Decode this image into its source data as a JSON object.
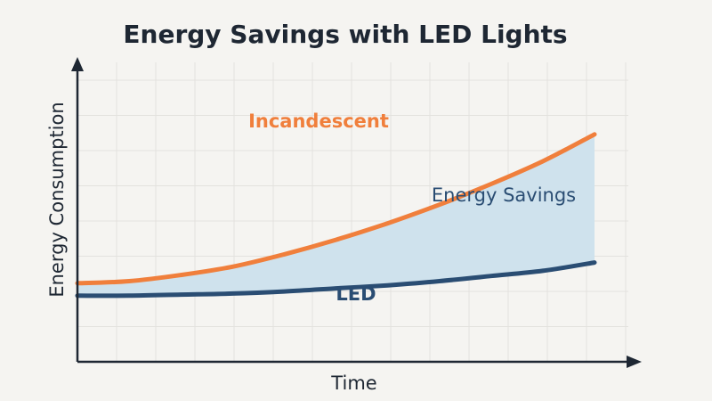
{
  "chart_data": {
    "type": "line",
    "title": "Energy Savings with LED Lights",
    "xlabel": "Time",
    "ylabel": "Energy Consumption",
    "xlim": [
      0,
      10
    ],
    "ylim": [
      0,
      10
    ],
    "grid": true,
    "x": [
      0,
      1,
      2,
      3,
      4,
      5,
      6,
      7,
      8,
      9,
      10
    ],
    "series": [
      {
        "name": "Incandescent",
        "color": "#f07f3c",
        "values": [
          3.8,
          3.9,
          4.2,
          4.6,
          5.2,
          5.9,
          6.7,
          7.6,
          8.6,
          9.7,
          11.0
        ]
      },
      {
        "name": "LED",
        "color": "#2a4d73",
        "values": [
          3.2,
          3.2,
          3.25,
          3.3,
          3.4,
          3.55,
          3.7,
          3.9,
          4.15,
          4.4,
          4.8
        ]
      }
    ],
    "fill_between": {
      "label": "Energy Savings",
      "color": "#cfe2ed",
      "label_color": "#2a4d73"
    },
    "annotations": [
      "Incandescent",
      "Energy Savings",
      "LED"
    ]
  }
}
